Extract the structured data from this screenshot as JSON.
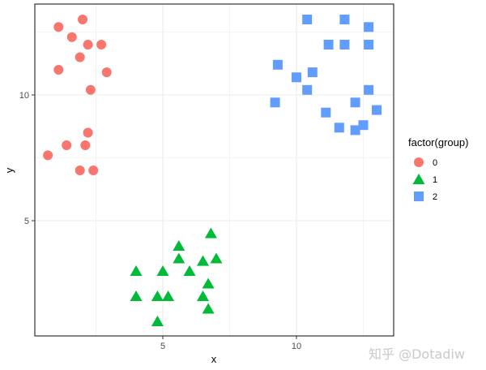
{
  "chart_data": {
    "type": "scatter",
    "title": "",
    "xlabel": "x",
    "ylabel": "y",
    "xlim": [
      0.1,
      13.5
    ],
    "ylim": [
      1.2,
      13.4
    ],
    "x_ticks": [
      5,
      10
    ],
    "y_ticks": [
      5,
      10
    ],
    "grid": true,
    "legend": {
      "title": "factor(group)",
      "position": "right",
      "entries": [
        "0",
        "1",
        "2"
      ]
    },
    "series": [
      {
        "name": "0",
        "shape": "circle",
        "color": "#F8766D",
        "points": [
          [
            1.1,
            12.7
          ],
          [
            2.0,
            13.0
          ],
          [
            1.6,
            12.3
          ],
          [
            2.2,
            12.0
          ],
          [
            2.7,
            12.0
          ],
          [
            1.9,
            11.5
          ],
          [
            1.1,
            11.0
          ],
          [
            2.9,
            10.9
          ],
          [
            2.3,
            10.2
          ],
          [
            2.2,
            8.5
          ],
          [
            1.4,
            8.0
          ],
          [
            2.1,
            8.0
          ],
          [
            0.7,
            7.6
          ],
          [
            1.9,
            7.0
          ],
          [
            2.4,
            7.0
          ]
        ]
      },
      {
        "name": "1",
        "shape": "triangle",
        "color": "#00BA38",
        "points": [
          [
            6.8,
            4.5
          ],
          [
            5.6,
            4.0
          ],
          [
            5.6,
            3.5
          ],
          [
            6.5,
            3.4
          ],
          [
            7.0,
            3.5
          ],
          [
            4.0,
            3.0
          ],
          [
            5.0,
            3.0
          ],
          [
            6.0,
            3.0
          ],
          [
            6.7,
            2.5
          ],
          [
            4.0,
            2.0
          ],
          [
            4.8,
            2.0
          ],
          [
            5.2,
            2.0
          ],
          [
            6.5,
            2.0
          ],
          [
            6.7,
            1.5
          ],
          [
            4.8,
            1.0
          ]
        ]
      },
      {
        "name": "2",
        "shape": "square",
        "color": "#619CFF",
        "points": [
          [
            10.4,
            13.0
          ],
          [
            11.8,
            13.0
          ],
          [
            12.7,
            12.7
          ],
          [
            11.2,
            12.0
          ],
          [
            11.8,
            12.0
          ],
          [
            12.7,
            12.0
          ],
          [
            9.3,
            11.2
          ],
          [
            10.0,
            10.7
          ],
          [
            10.6,
            10.9
          ],
          [
            10.4,
            10.2
          ],
          [
            12.7,
            10.2
          ],
          [
            9.2,
            9.7
          ],
          [
            12.2,
            9.7
          ],
          [
            13.0,
            9.4
          ],
          [
            11.1,
            9.3
          ],
          [
            11.6,
            8.7
          ],
          [
            12.2,
            8.6
          ],
          [
            12.5,
            8.8
          ]
        ]
      }
    ]
  },
  "watermark": "知乎 @Dotadiw"
}
